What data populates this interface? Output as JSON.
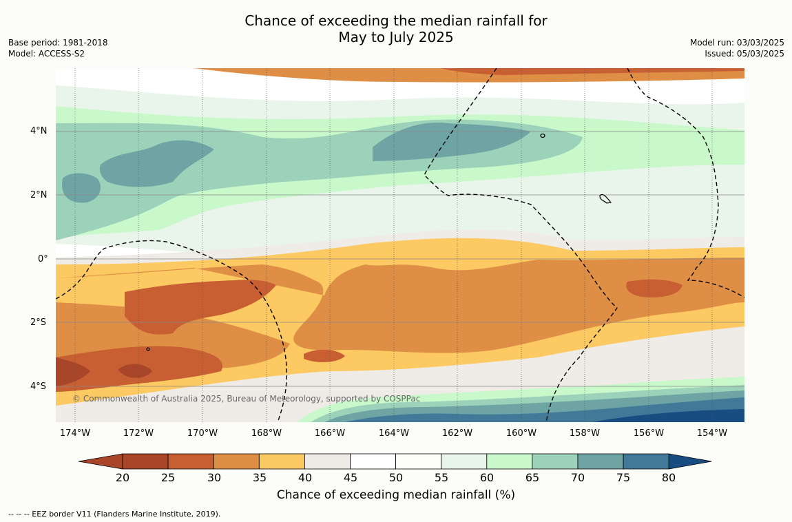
{
  "title_line1": "Chance of exceeding the median rainfall for",
  "title_line2": "May to July 2025",
  "base_period": "Base period: 1981-2018",
  "model": "Model: ACCESS-S2",
  "model_run": "Model run: 03/03/2025",
  "issued": "Issued: 05/03/2025",
  "lat_labels": [
    "4°N",
    "2°N",
    "0°",
    "2°S",
    "4°S"
  ],
  "lon_labels": [
    "174°W",
    "172°W",
    "170°W",
    "168°W",
    "166°W",
    "164°W",
    "162°W",
    "160°W",
    "158°W",
    "156°W",
    "154°W"
  ],
  "credit": "© Commonwealth of Australia 2025, Bureau of Meteorology, supported by COSPPac",
  "colorbar": {
    "ticks": [
      "20",
      "25",
      "30",
      "35",
      "40",
      "45",
      "50",
      "55",
      "60",
      "65",
      "70",
      "75",
      "80"
    ],
    "colors": [
      "#a9462a",
      "#c85f33",
      "#df8f45",
      "#fdc962",
      "#efebe6",
      "#ffffff",
      "#fdfdfc",
      "#e9f4ea",
      "#c9f9cb",
      "#9bd2b9",
      "#6ea5a4",
      "#427999",
      "#184d82"
    ],
    "label": "Chance of exceeding median rainfall (%)"
  },
  "footnote": "-- -- -- EEZ border V11 (Flanders Marine Institute, 2019)."
}
